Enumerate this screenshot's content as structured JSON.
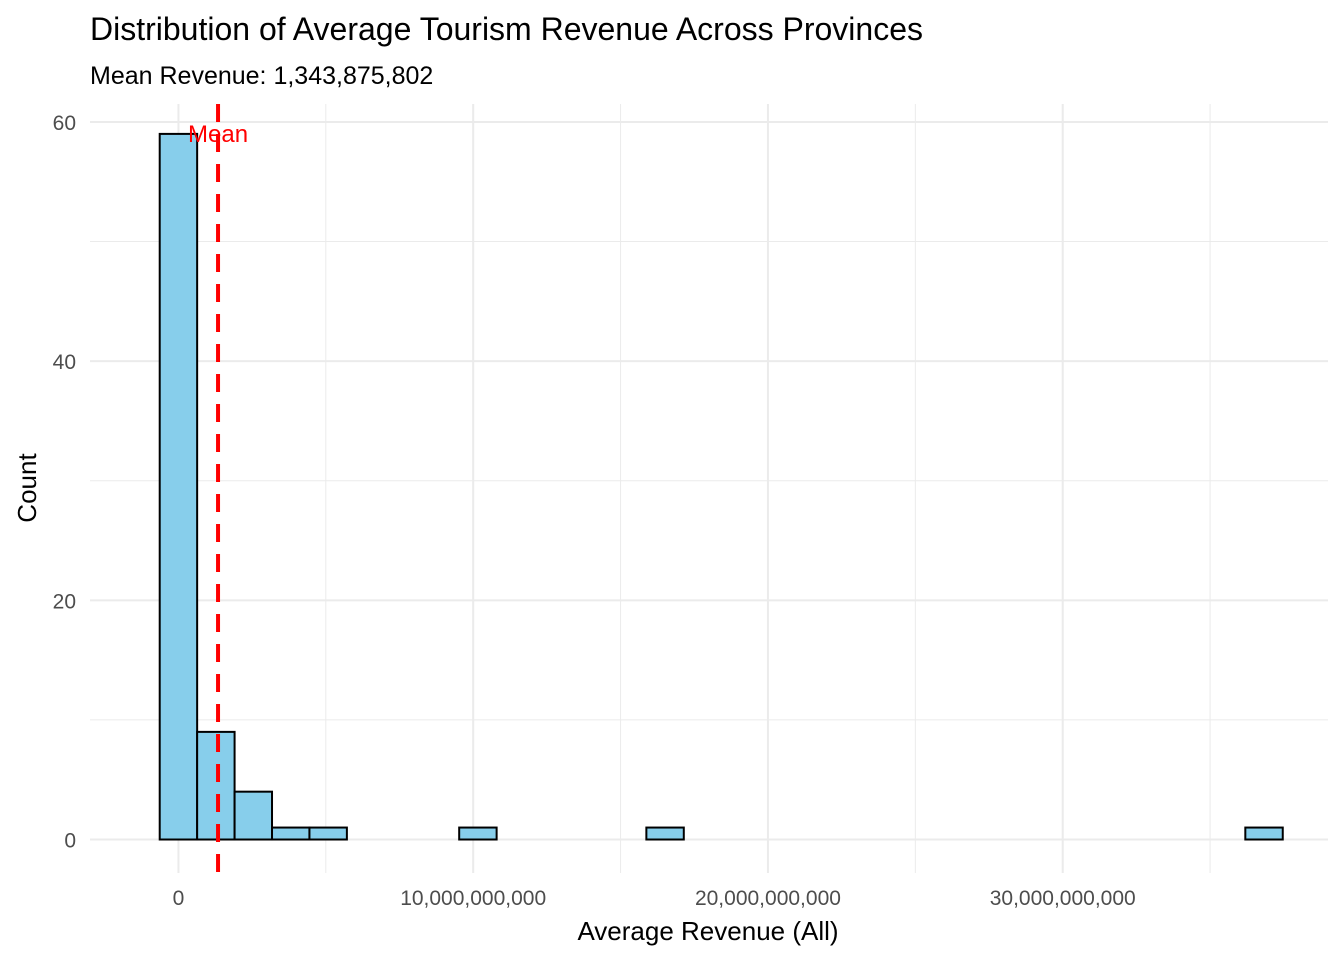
{
  "chart_data": {
    "type": "histogram",
    "title": "Distribution of Average Tourism Revenue Across Provinces",
    "subtitle": "Mean Revenue: 1,343,875,802",
    "xlabel": "Average Revenue (All)",
    "ylabel": "Count",
    "xlim": [
      -3000000000,
      39000000000
    ],
    "ylim": [
      -2.8,
      61.5
    ],
    "bin_width": 1270000000,
    "bins": [
      {
        "center": 0,
        "count": 59
      },
      {
        "center": 1270000000,
        "count": 9
      },
      {
        "center": 2540000000,
        "count": 4
      },
      {
        "center": 3810000000,
        "count": 1
      },
      {
        "center": 5080000000,
        "count": 1
      },
      {
        "center": 6350000000,
        "count": 0
      },
      {
        "center": 7620000000,
        "count": 0
      },
      {
        "center": 8890000000,
        "count": 0
      },
      {
        "center": 10160000000,
        "count": 1
      },
      {
        "center": 11430000000,
        "count": 0
      },
      {
        "center": 12700000000,
        "count": 0
      },
      {
        "center": 13970000000,
        "count": 0
      },
      {
        "center": 15240000000,
        "count": 0
      },
      {
        "center": 16510000000,
        "count": 1
      },
      {
        "center": 17780000000,
        "count": 0
      },
      {
        "center": 19050000000,
        "count": 0
      },
      {
        "center": 20320000000,
        "count": 0
      },
      {
        "center": 21590000000,
        "count": 0
      },
      {
        "center": 22860000000,
        "count": 0
      },
      {
        "center": 24130000000,
        "count": 0
      },
      {
        "center": 25400000000,
        "count": 0
      },
      {
        "center": 26670000000,
        "count": 0
      },
      {
        "center": 27940000000,
        "count": 0
      },
      {
        "center": 29210000000,
        "count": 0
      },
      {
        "center": 30480000000,
        "count": 0
      },
      {
        "center": 31750000000,
        "count": 0
      },
      {
        "center": 33020000000,
        "count": 0
      },
      {
        "center": 34290000000,
        "count": 0
      },
      {
        "center": 35560000000,
        "count": 0
      },
      {
        "center": 36830000000,
        "count": 1
      }
    ],
    "x_ticks": [
      {
        "value": 0,
        "label": "0"
      },
      {
        "value": 10000000000,
        "label": "10,000,000,000"
      },
      {
        "value": 20000000000,
        "label": "20,000,000,000"
      },
      {
        "value": 30000000000,
        "label": "30,000,000,000"
      }
    ],
    "x_minor_ticks": [
      5000000000,
      15000000000,
      25000000000,
      35000000000
    ],
    "y_ticks": [
      {
        "value": 0,
        "label": "0"
      },
      {
        "value": 20,
        "label": "20"
      },
      {
        "value": 40,
        "label": "40"
      },
      {
        "value": 60,
        "label": "60"
      }
    ],
    "y_minor_ticks": [
      10,
      30,
      50
    ],
    "mean": {
      "value": 1343875802,
      "label": "Mean",
      "y": 59
    },
    "grid": true,
    "colors": {
      "bar_fill": "#87ceeb",
      "bar_stroke": "#000000",
      "mean_line": "#ff0000",
      "grid": "#ebebeb",
      "tick_text": "#4d4d4d"
    }
  }
}
